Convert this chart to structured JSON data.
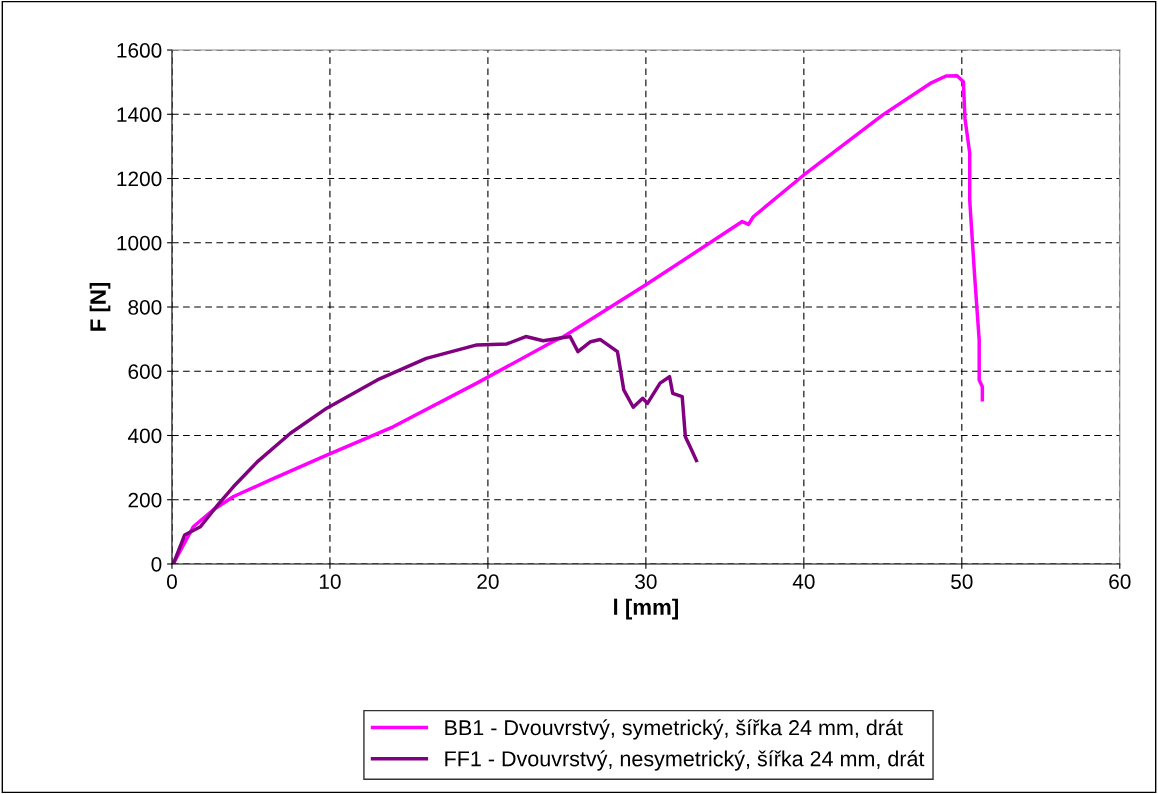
{
  "chart_data": {
    "type": "line",
    "xlabel": "l [mm]",
    "ylabel": "F [N]",
    "xlim": [
      0,
      60
    ],
    "xticks": [
      0,
      10,
      20,
      30,
      40,
      50,
      60
    ],
    "ylim": [
      0,
      1600
    ],
    "yticks": [
      0,
      200,
      400,
      600,
      800,
      1000,
      1200,
      1400,
      1600
    ],
    "grid": true,
    "legend": "bottom",
    "marker": "none",
    "line_style": "solid",
    "series": [
      {
        "name": "BB1 - Dvouvrstvý, symetrický, šířka 24 mm, drát",
        "color": "#ff00ff",
        "x": [
          0,
          0.1,
          1.35,
          2.6,
          3.9,
          6.2,
          9.8,
          14.0,
          19.3,
          24.1,
          24.8,
          30.0,
          36.1,
          36.5,
          36.8,
          40.0,
          45.0,
          48.0,
          49.0,
          49.7,
          50.1,
          50.2,
          50.5,
          50.5,
          50.8,
          51.1,
          51.1,
          51.3,
          51.3
        ],
        "values": [
          0,
          2,
          116,
          168,
          210,
          261,
          339,
          427,
          563,
          692,
          708,
          869,
          1066,
          1057,
          1081,
          1211,
          1398,
          1496,
          1519,
          1520,
          1501,
          1387,
          1279,
          1133,
          905,
          697,
          573,
          552,
          511
        ]
      },
      {
        "name": "FF1 - Dvouvrstvý, nesymetrický, šířka 24 mm, drát",
        "color": "#800080",
        "x": [
          0,
          0.1,
          0.8,
          1.8,
          2.9,
          3.9,
          5.4,
          7.5,
          9.8,
          13.0,
          16.1,
          19.3,
          21.2,
          22.4,
          23.5,
          25.2,
          25.7,
          26.5,
          27.1,
          28.2,
          28.6,
          29.2,
          29.8,
          30.1,
          30.9,
          31.5,
          31.7,
          32.3,
          32.5,
          32.8,
          33.2
        ],
        "values": [
          0,
          2,
          90,
          116,
          184,
          241,
          318,
          407,
          485,
          573,
          640,
          682,
          685,
          708,
          695,
          708,
          661,
          692,
          699,
          661,
          542,
          488,
          516,
          500,
          563,
          583,
          531,
          521,
          396,
          365,
          322
        ]
      }
    ]
  }
}
